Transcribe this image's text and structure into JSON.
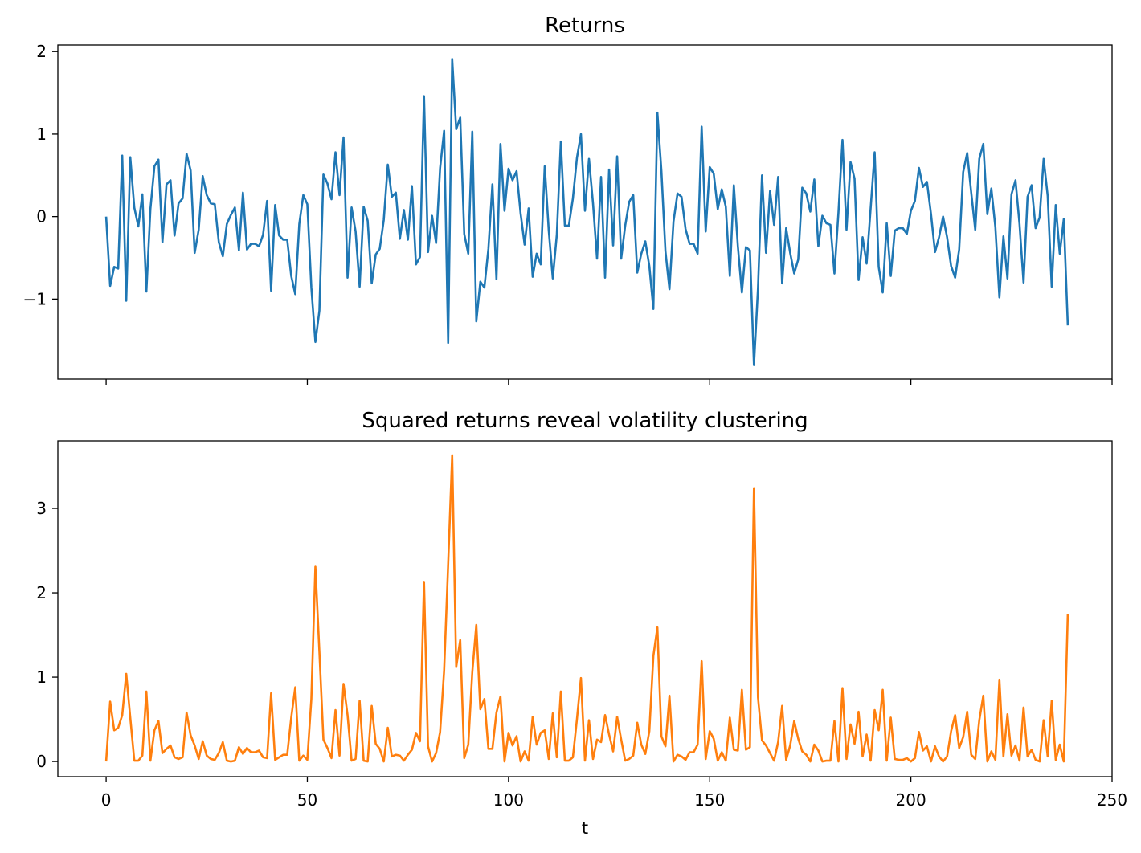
{
  "chart_data": [
    {
      "type": "line",
      "title": "Returns",
      "xlabel": "",
      "ylabel": "",
      "xlim": [
        -12,
        250
      ],
      "ylim": [
        -1.97,
        2.08
      ],
      "xticks": [
        0,
        50,
        100,
        150,
        200,
        250
      ],
      "yticks": [
        -1,
        0,
        1,
        2
      ],
      "yticklabels": [
        "−1",
        "0",
        "1",
        "2"
      ],
      "xticklabels_shown": false,
      "grid": false,
      "color": "#1f77b4",
      "series": [
        {
          "values": [
            0.0,
            -0.84,
            -0.61,
            -0.63,
            0.74,
            -1.02,
            0.72,
            0.11,
            -0.12,
            0.27,
            -0.91,
            0.09,
            0.61,
            0.69,
            -0.31,
            0.39,
            0.44,
            -0.23,
            0.16,
            0.22,
            0.76,
            0.56,
            -0.44,
            -0.16,
            0.49,
            0.26,
            0.16,
            0.15,
            -0.31,
            -0.48,
            -0.09,
            0.02,
            0.11,
            -0.41,
            0.29,
            -0.4,
            -0.33,
            -0.33,
            -0.36,
            -0.22,
            0.19,
            -0.9,
            0.14,
            -0.23,
            -0.28,
            -0.28,
            -0.72,
            -0.94,
            -0.09,
            0.26,
            0.15,
            -0.86,
            -1.52,
            -1.14,
            0.51,
            0.4,
            0.21,
            0.78,
            0.26,
            0.96,
            -0.74,
            0.11,
            -0.18,
            -0.85,
            0.12,
            -0.05,
            -0.81,
            -0.46,
            -0.39,
            -0.04,
            0.63,
            0.24,
            0.29,
            -0.27,
            0.08,
            -0.28,
            0.37,
            -0.58,
            -0.49,
            1.46,
            -0.43,
            0.01,
            -0.32,
            0.59,
            1.04,
            -1.53,
            1.91,
            1.06,
            1.2,
            -0.21,
            -0.45,
            1.03,
            -1.27,
            -0.79,
            -0.86,
            -0.39,
            0.39,
            -0.76,
            0.88,
            0.07,
            0.58,
            0.44,
            0.55,
            0.04,
            -0.34,
            0.1,
            -0.73,
            -0.45,
            -0.58,
            0.61,
            -0.17,
            -0.75,
            -0.22,
            0.91,
            -0.11,
            -0.11,
            0.22,
            0.71,
            1.0,
            0.07,
            0.7,
            0.16,
            -0.51,
            0.48,
            -0.74,
            0.57,
            -0.35,
            0.73,
            -0.51,
            -0.11,
            0.18,
            0.26,
            -0.68,
            -0.45,
            -0.3,
            -0.6,
            -1.12,
            1.26,
            0.55,
            -0.42,
            -0.88,
            -0.06,
            0.28,
            0.24,
            -0.15,
            -0.33,
            -0.33,
            -0.45,
            1.09,
            -0.18,
            0.6,
            0.52,
            0.09,
            0.33,
            0.12,
            -0.72,
            0.38,
            -0.36,
            -0.92,
            -0.37,
            -0.41,
            -1.8,
            -0.87,
            0.5,
            -0.44,
            0.31,
            -0.1,
            0.48,
            -0.81,
            -0.14,
            -0.44,
            -0.69,
            -0.52,
            0.35,
            0.28,
            0.06,
            0.45,
            -0.36,
            0.01,
            -0.08,
            -0.1,
            -0.69,
            0.05,
            0.93,
            -0.16,
            0.66,
            0.46,
            -0.77,
            -0.25,
            -0.57,
            0.1,
            0.78,
            -0.61,
            -0.92,
            -0.08,
            -0.72,
            -0.17,
            -0.14,
            -0.14,
            -0.21,
            0.07,
            0.19,
            0.59,
            0.36,
            0.42,
            0.03,
            -0.43,
            -0.25,
            0.0,
            -0.25,
            -0.6,
            -0.74,
            -0.4,
            0.54,
            0.77,
            0.29,
            -0.16,
            0.7,
            0.88,
            0.03,
            0.34,
            -0.13,
            -0.98,
            -0.24,
            -0.75,
            0.27,
            0.44,
            -0.09,
            -0.8,
            0.24,
            0.38,
            -0.14,
            -0.01,
            0.7,
            0.25,
            -0.85,
            0.14,
            -0.45,
            -0.03,
            -1.32
          ]
        }
      ]
    },
    {
      "type": "line",
      "title": "Squared returns reveal volatility clustering",
      "xlabel": "t",
      "ylabel": "",
      "xlim": [
        -12,
        250
      ],
      "ylim": [
        -0.18,
        3.8
      ],
      "xticks": [
        0,
        50,
        100,
        150,
        200,
        250
      ],
      "xticklabels": [
        "0",
        "50",
        "100",
        "150",
        "200",
        "250"
      ],
      "yticks": [
        0,
        1,
        2,
        3
      ],
      "yticklabels": [
        "0",
        "1",
        "2",
        "3"
      ],
      "grid": false,
      "color": "#ff7f0e",
      "series": [
        {
          "values": [
            0.0,
            0.71,
            0.37,
            0.4,
            0.55,
            1.04,
            0.52,
            0.01,
            0.01,
            0.07,
            0.83,
            0.01,
            0.37,
            0.48,
            0.1,
            0.15,
            0.19,
            0.05,
            0.03,
            0.05,
            0.58,
            0.31,
            0.19,
            0.03,
            0.24,
            0.07,
            0.03,
            0.02,
            0.1,
            0.23,
            0.01,
            0.0,
            0.01,
            0.17,
            0.09,
            0.16,
            0.11,
            0.11,
            0.13,
            0.05,
            0.04,
            0.81,
            0.02,
            0.05,
            0.08,
            0.08,
            0.52,
            0.88,
            0.01,
            0.07,
            0.02,
            0.74,
            2.31,
            1.3,
            0.26,
            0.16,
            0.04,
            0.61,
            0.07,
            0.92,
            0.55,
            0.01,
            0.03,
            0.72,
            0.01,
            0.0,
            0.66,
            0.21,
            0.15,
            0.0,
            0.4,
            0.06,
            0.08,
            0.07,
            0.01,
            0.08,
            0.14,
            0.34,
            0.24,
            2.13,
            0.18,
            0.0,
            0.1,
            0.35,
            1.08,
            2.34,
            3.63,
            1.12,
            1.44,
            0.04,
            0.2,
            1.06,
            1.62,
            0.62,
            0.74,
            0.15,
            0.15,
            0.58,
            0.77,
            0.0,
            0.34,
            0.19,
            0.3,
            0.0,
            0.12,
            0.01,
            0.53,
            0.2,
            0.34,
            0.37,
            0.03,
            0.57,
            0.05,
            0.83,
            0.01,
            0.01,
            0.05,
            0.5,
            0.99,
            0.01,
            0.49,
            0.03,
            0.26,
            0.23,
            0.55,
            0.32,
            0.12,
            0.53,
            0.26,
            0.01,
            0.03,
            0.07,
            0.46,
            0.2,
            0.09,
            0.36,
            1.25,
            1.59,
            0.3,
            0.18,
            0.78,
            0.0,
            0.08,
            0.06,
            0.02,
            0.11,
            0.11,
            0.2,
            1.19,
            0.03,
            0.36,
            0.27,
            0.01,
            0.11,
            0.01,
            0.52,
            0.14,
            0.13,
            0.85,
            0.14,
            0.17,
            3.24,
            0.76,
            0.25,
            0.19,
            0.1,
            0.01,
            0.23,
            0.66,
            0.02,
            0.19,
            0.48,
            0.27,
            0.12,
            0.08,
            0.0,
            0.2,
            0.13,
            0.0,
            0.01,
            0.01,
            0.48,
            0.0,
            0.87,
            0.03,
            0.44,
            0.21,
            0.59,
            0.06,
            0.32,
            0.01,
            0.61,
            0.37,
            0.85,
            0.01,
            0.52,
            0.03,
            0.02,
            0.02,
            0.04,
            0.0,
            0.04,
            0.35,
            0.13,
            0.18,
            0.0,
            0.18,
            0.06,
            0.0,
            0.06,
            0.36,
            0.55,
            0.16,
            0.29,
            0.59,
            0.08,
            0.03,
            0.49,
            0.78,
            0.0,
            0.12,
            0.02,
            0.97,
            0.06,
            0.56,
            0.07,
            0.19,
            0.01,
            0.64,
            0.06,
            0.14,
            0.02,
            0.0,
            0.49,
            0.06,
            0.72,
            0.02,
            0.2,
            0.0,
            1.75
          ]
        }
      ]
    }
  ]
}
